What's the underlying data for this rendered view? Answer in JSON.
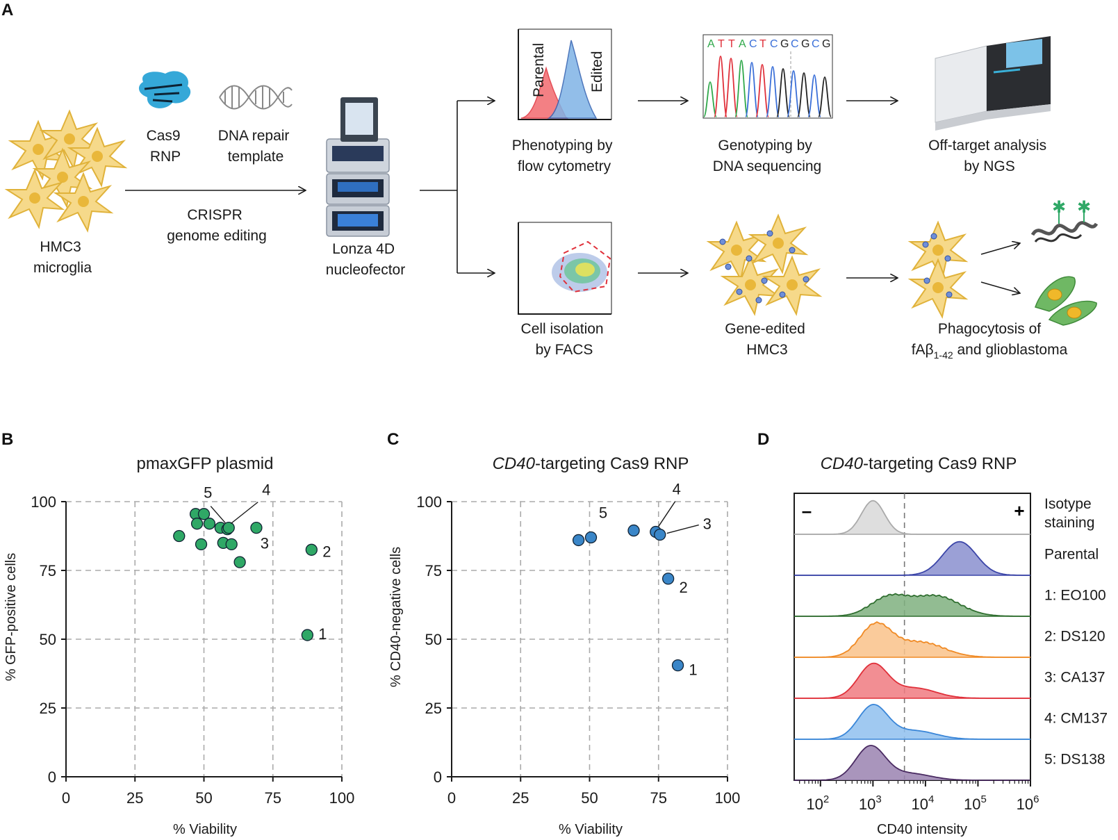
{
  "panels": {
    "A": {
      "letter": "A",
      "hmc3": [
        "HMC3",
        "microglia"
      ],
      "cas9": [
        "Cas9",
        "RNP"
      ],
      "dna_template": [
        "DNA repair",
        "template"
      ],
      "crispr": [
        "CRISPR",
        "genome editing"
      ],
      "lonza": [
        "Lonza 4D",
        "nucleofector"
      ],
      "phenotyping": [
        "Phenotyping by",
        "flow cytometry"
      ],
      "flow_labels": {
        "parental": "Parental",
        "edited": "Edited"
      },
      "genotyping": [
        "Genotyping by",
        "DNA sequencing"
      ],
      "sequence": "ATTACTCGCGCG",
      "offtarget": [
        "Off-target analysis",
        "by NGS"
      ],
      "cell_isolation": [
        "Cell isolation",
        "by FACS"
      ],
      "gene_edited": [
        "Gene-edited",
        "HMC3"
      ],
      "phago_line1": "Phagocytosis of",
      "phago_line2_prefix": "fAβ",
      "phago_line2_sub": "1-42",
      "phago_line2_suffix": " and glioblastoma"
    },
    "B": {
      "letter": "B"
    },
    "C": {
      "letter": "C"
    },
    "D": {
      "letter": "D"
    }
  },
  "chart_data": [
    {
      "id": "B",
      "type": "scatter",
      "title": "pmaxGFP plasmid",
      "xlabel": "% Viability",
      "ylabel": "% GFP-positive cells",
      "xlim": [
        0,
        100
      ],
      "ylim": [
        0,
        100
      ],
      "xticks": [
        "0",
        "25",
        "50",
        "75",
        "100"
      ],
      "yticks": [
        "0",
        "25",
        "50",
        "75",
        "100"
      ],
      "grid": true,
      "color": "#2fa866",
      "points": [
        {
          "x": 41,
          "y": 87.5,
          "label": ""
        },
        {
          "x": 47,
          "y": 95.5,
          "label": ""
        },
        {
          "x": 50,
          "y": 95.5,
          "label": ""
        },
        {
          "x": 47.5,
          "y": 92,
          "label": ""
        },
        {
          "x": 52,
          "y": 92,
          "label": ""
        },
        {
          "x": 56,
          "y": 90.5,
          "label": ""
        },
        {
          "x": 49,
          "y": 84.5,
          "label": ""
        },
        {
          "x": 57,
          "y": 85,
          "label": ""
        },
        {
          "x": 60,
          "y": 84.5,
          "label": ""
        },
        {
          "x": 63,
          "y": 78,
          "label": ""
        },
        {
          "x": 58.5,
          "y": 90,
          "label": "5"
        },
        {
          "x": 59,
          "y": 90.5,
          "label": "4"
        },
        {
          "x": 69,
          "y": 90.5,
          "label": "3"
        },
        {
          "x": 89,
          "y": 82.5,
          "label": "2"
        },
        {
          "x": 87.5,
          "y": 51.5,
          "label": "1"
        }
      ]
    },
    {
      "id": "C",
      "type": "scatter",
      "title_italic": "CD40",
      "title_rest": "-targeting Cas9 RNP",
      "xlabel": "% Viability",
      "ylabel": "% CD40-negative cells",
      "xlim": [
        0,
        100
      ],
      "ylim": [
        0,
        100
      ],
      "xticks": [
        "0",
        "25",
        "50",
        "75",
        "100"
      ],
      "yticks": [
        "0",
        "25",
        "50",
        "75",
        "100"
      ],
      "grid": true,
      "color": "#3a86c8",
      "points": [
        {
          "x": 46,
          "y": 86,
          "label": ""
        },
        {
          "x": 50.5,
          "y": 87,
          "label": ""
        },
        {
          "x": 66,
          "y": 89.5,
          "label": "5"
        },
        {
          "x": 74,
          "y": 89,
          "label": "4"
        },
        {
          "x": 75.5,
          "y": 88,
          "label": "3"
        },
        {
          "x": 78.5,
          "y": 72,
          "label": "2"
        },
        {
          "x": 82,
          "y": 40.5,
          "label": "1"
        }
      ]
    },
    {
      "id": "D",
      "type": "area",
      "title_italic": "CD40",
      "title_rest": "-targeting Cas9 RNP",
      "xlabel": "CD40 intensity",
      "x_scale": "log10",
      "xlim_log10": [
        1.5,
        6
      ],
      "xticks": [
        "10^2",
        "10^3",
        "10^4",
        "10^5",
        "10^6"
      ],
      "gate_log10": 3.6,
      "neg_marker": "–",
      "pos_marker": "+",
      "series": [
        {
          "name": "Isotype staining",
          "label_lines": [
            "Isotype",
            "staining"
          ],
          "color": "#aaaaaa",
          "fill": "#d8d8d8",
          "peaks": [
            [
              3.0,
              0.22,
              1.0
            ]
          ]
        },
        {
          "name": "Parental",
          "label_lines": [
            "Parental"
          ],
          "color": "#3b45a8",
          "fill": "#8a8fcf",
          "peaks": [
            [
              4.65,
              0.32,
              1.0
            ]
          ]
        },
        {
          "name": "1: EO100",
          "label_lines": [
            "1: EO100"
          ],
          "color": "#2f6e2f",
          "fill": "#7fb07f",
          "peaks": [
            [
              3.3,
              0.35,
              0.55
            ],
            [
              4.2,
              0.45,
              0.6
            ]
          ]
        },
        {
          "name": "2: DS120",
          "label_lines": [
            "2: DS120"
          ],
          "color": "#f08a24",
          "fill": "#f9c28a",
          "peaks": [
            [
              3.05,
              0.3,
              0.95
            ],
            [
              3.9,
              0.45,
              0.45
            ]
          ]
        },
        {
          "name": "3: CA137",
          "label_lines": [
            "3: CA137"
          ],
          "color": "#e0303a",
          "fill": "#f07a80",
          "peaks": [
            [
              3.0,
              0.28,
              1.0
            ],
            [
              3.8,
              0.4,
              0.3
            ]
          ]
        },
        {
          "name": "4: CM137",
          "label_lines": [
            "4: CM137"
          ],
          "color": "#3a86d8",
          "fill": "#8fc0ee",
          "peaks": [
            [
              3.0,
              0.28,
              1.0
            ],
            [
              3.8,
              0.4,
              0.25
            ]
          ]
        },
        {
          "name": "5: DS138",
          "label_lines": [
            "5: DS138"
          ],
          "color": "#4a2b62",
          "fill": "#9a83b0",
          "peaks": [
            [
              2.95,
              0.28,
              1.0
            ],
            [
              3.7,
              0.4,
              0.2
            ]
          ]
        }
      ]
    }
  ]
}
